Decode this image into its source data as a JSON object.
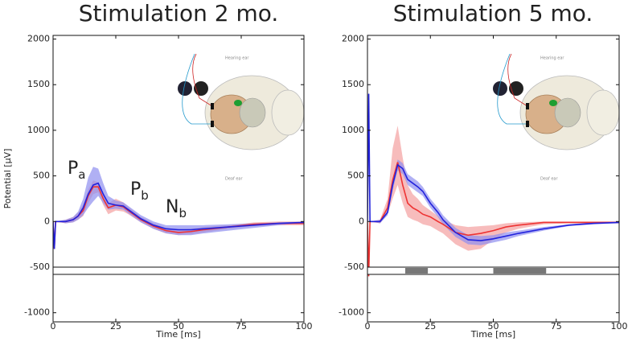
{
  "chart_data": [
    {
      "type": "line",
      "title": "Stimulation 2 mo.",
      "x_label": "Time [ms]",
      "y_label": "Potential [µV]",
      "xlim": [
        0,
        100
      ],
      "ylim": [
        -1100,
        2040
      ],
      "xticks": [
        0,
        25,
        50,
        75,
        100
      ],
      "yticks": [
        2000,
        1500,
        1000,
        500,
        0,
        -500,
        -1000
      ],
      "x": [
        0,
        0.5,
        1,
        5,
        8,
        10,
        12,
        14,
        16,
        18,
        20,
        22,
        25,
        28,
        30,
        35,
        40,
        45,
        50,
        55,
        60,
        70,
        80,
        90,
        100
      ],
      "series": [
        {
          "color": "#ee3333",
          "band_color": "#f4a0a0",
          "values": [
            0,
            -300,
            0,
            0,
            20,
            60,
            120,
            280,
            380,
            380,
            250,
            150,
            180,
            160,
            120,
            20,
            -50,
            -100,
            -120,
            -110,
            -90,
            -60,
            -30,
            -20,
            -20
          ],
          "upper": [
            0,
            -300,
            0,
            20,
            50,
            100,
            180,
            350,
            450,
            430,
            300,
            200,
            250,
            210,
            160,
            50,
            -20,
            -70,
            -90,
            -80,
            -60,
            -40,
            -10,
            0,
            0
          ],
          "lower": [
            0,
            -300,
            0,
            -20,
            -10,
            20,
            60,
            200,
            300,
            320,
            180,
            80,
            120,
            110,
            80,
            -10,
            -80,
            -130,
            -150,
            -140,
            -120,
            -80,
            -50,
            -40,
            -40
          ]
        },
        {
          "color": "#2222dd",
          "band_color": "#8f8ff0",
          "values": [
            0,
            -300,
            0,
            0,
            20,
            60,
            150,
            300,
            400,
            420,
            300,
            200,
            180,
            170,
            130,
            30,
            -40,
            -80,
            -90,
            -90,
            -80,
            -60,
            -40,
            -20,
            -10
          ],
          "upper": [
            0,
            -300,
            0,
            20,
            50,
            110,
            250,
            480,
            600,
            580,
            420,
            280,
            230,
            210,
            170,
            70,
            0,
            -40,
            -40,
            -40,
            -40,
            -30,
            -20,
            -10,
            0
          ],
          "lower": [
            0,
            -300,
            0,
            -20,
            -10,
            20,
            70,
            150,
            220,
            280,
            200,
            130,
            140,
            130,
            90,
            -10,
            -80,
            -130,
            -150,
            -150,
            -130,
            -100,
            -70,
            -40,
            -20
          ]
        }
      ],
      "annotations": [
        {
          "main": "P",
          "sub": "a"
        },
        {
          "main": "P",
          "sub": "b"
        },
        {
          "main": "N",
          "sub": "b"
        }
      ],
      "inset_labels": [
        "Hearing ear",
        "Deaf ear"
      ],
      "significance_intervals": []
    },
    {
      "type": "line",
      "title": "Stimulation 5 mo.",
      "x_label": "Time [ms]",
      "xlim": [
        0,
        100
      ],
      "ylim": [
        -1100,
        2040
      ],
      "xticks": [
        0,
        25,
        50,
        75,
        100
      ],
      "yticks": [
        2000,
        1500,
        1000,
        500,
        0,
        -500,
        -1000
      ],
      "x": [
        0,
        0.5,
        1,
        5,
        8,
        10,
        12,
        14,
        16,
        18,
        20,
        22,
        25,
        28,
        30,
        35,
        40,
        45,
        50,
        55,
        60,
        70,
        80,
        90,
        100
      ],
      "series": [
        {
          "color": "#ee3333",
          "band_color": "#f4a0a0",
          "values": [
            0,
            -600,
            0,
            0,
            150,
            450,
            650,
            400,
            200,
            150,
            120,
            80,
            50,
            0,
            -30,
            -120,
            -150,
            -130,
            -100,
            -60,
            -40,
            -10,
            -10,
            -10,
            -10
          ],
          "upper": [
            0,
            -600,
            0,
            20,
            250,
            800,
            1050,
            700,
            400,
            300,
            250,
            180,
            120,
            60,
            20,
            -40,
            -60,
            -50,
            -40,
            -20,
            -10,
            0,
            0,
            0,
            0
          ],
          "lower": [
            0,
            -600,
            0,
            -20,
            80,
            250,
            400,
            200,
            50,
            20,
            0,
            -30,
            -50,
            -100,
            -130,
            -250,
            -320,
            -300,
            -200,
            -120,
            -80,
            -30,
            -20,
            -20,
            -20
          ]
        },
        {
          "color": "#2222dd",
          "band_color": "#8f8ff0",
          "values": [
            0,
            1400,
            0,
            0,
            100,
            400,
            620,
            580,
            460,
            420,
            380,
            330,
            200,
            100,
            20,
            -120,
            -200,
            -210,
            -190,
            -160,
            -130,
            -80,
            -40,
            -20,
            -10
          ],
          "upper": [
            0,
            1400,
            0,
            20,
            130,
            460,
            680,
            640,
            520,
            480,
            440,
            380,
            250,
            150,
            70,
            -70,
            -150,
            -160,
            -150,
            -120,
            -100,
            -60,
            -30,
            -10,
            0
          ],
          "lower": [
            0,
            1400,
            0,
            -20,
            70,
            340,
            560,
            520,
            400,
            360,
            320,
            280,
            150,
            50,
            -30,
            -170,
            -250,
            -260,
            -230,
            -200,
            -160,
            -100,
            -50,
            -30,
            -20
          ]
        }
      ],
      "annotations": [],
      "inset_labels": [
        "Hearing ear",
        "Deaf ear"
      ],
      "significance_intervals": [
        [
          15,
          24
        ],
        [
          50,
          71
        ]
      ]
    }
  ]
}
